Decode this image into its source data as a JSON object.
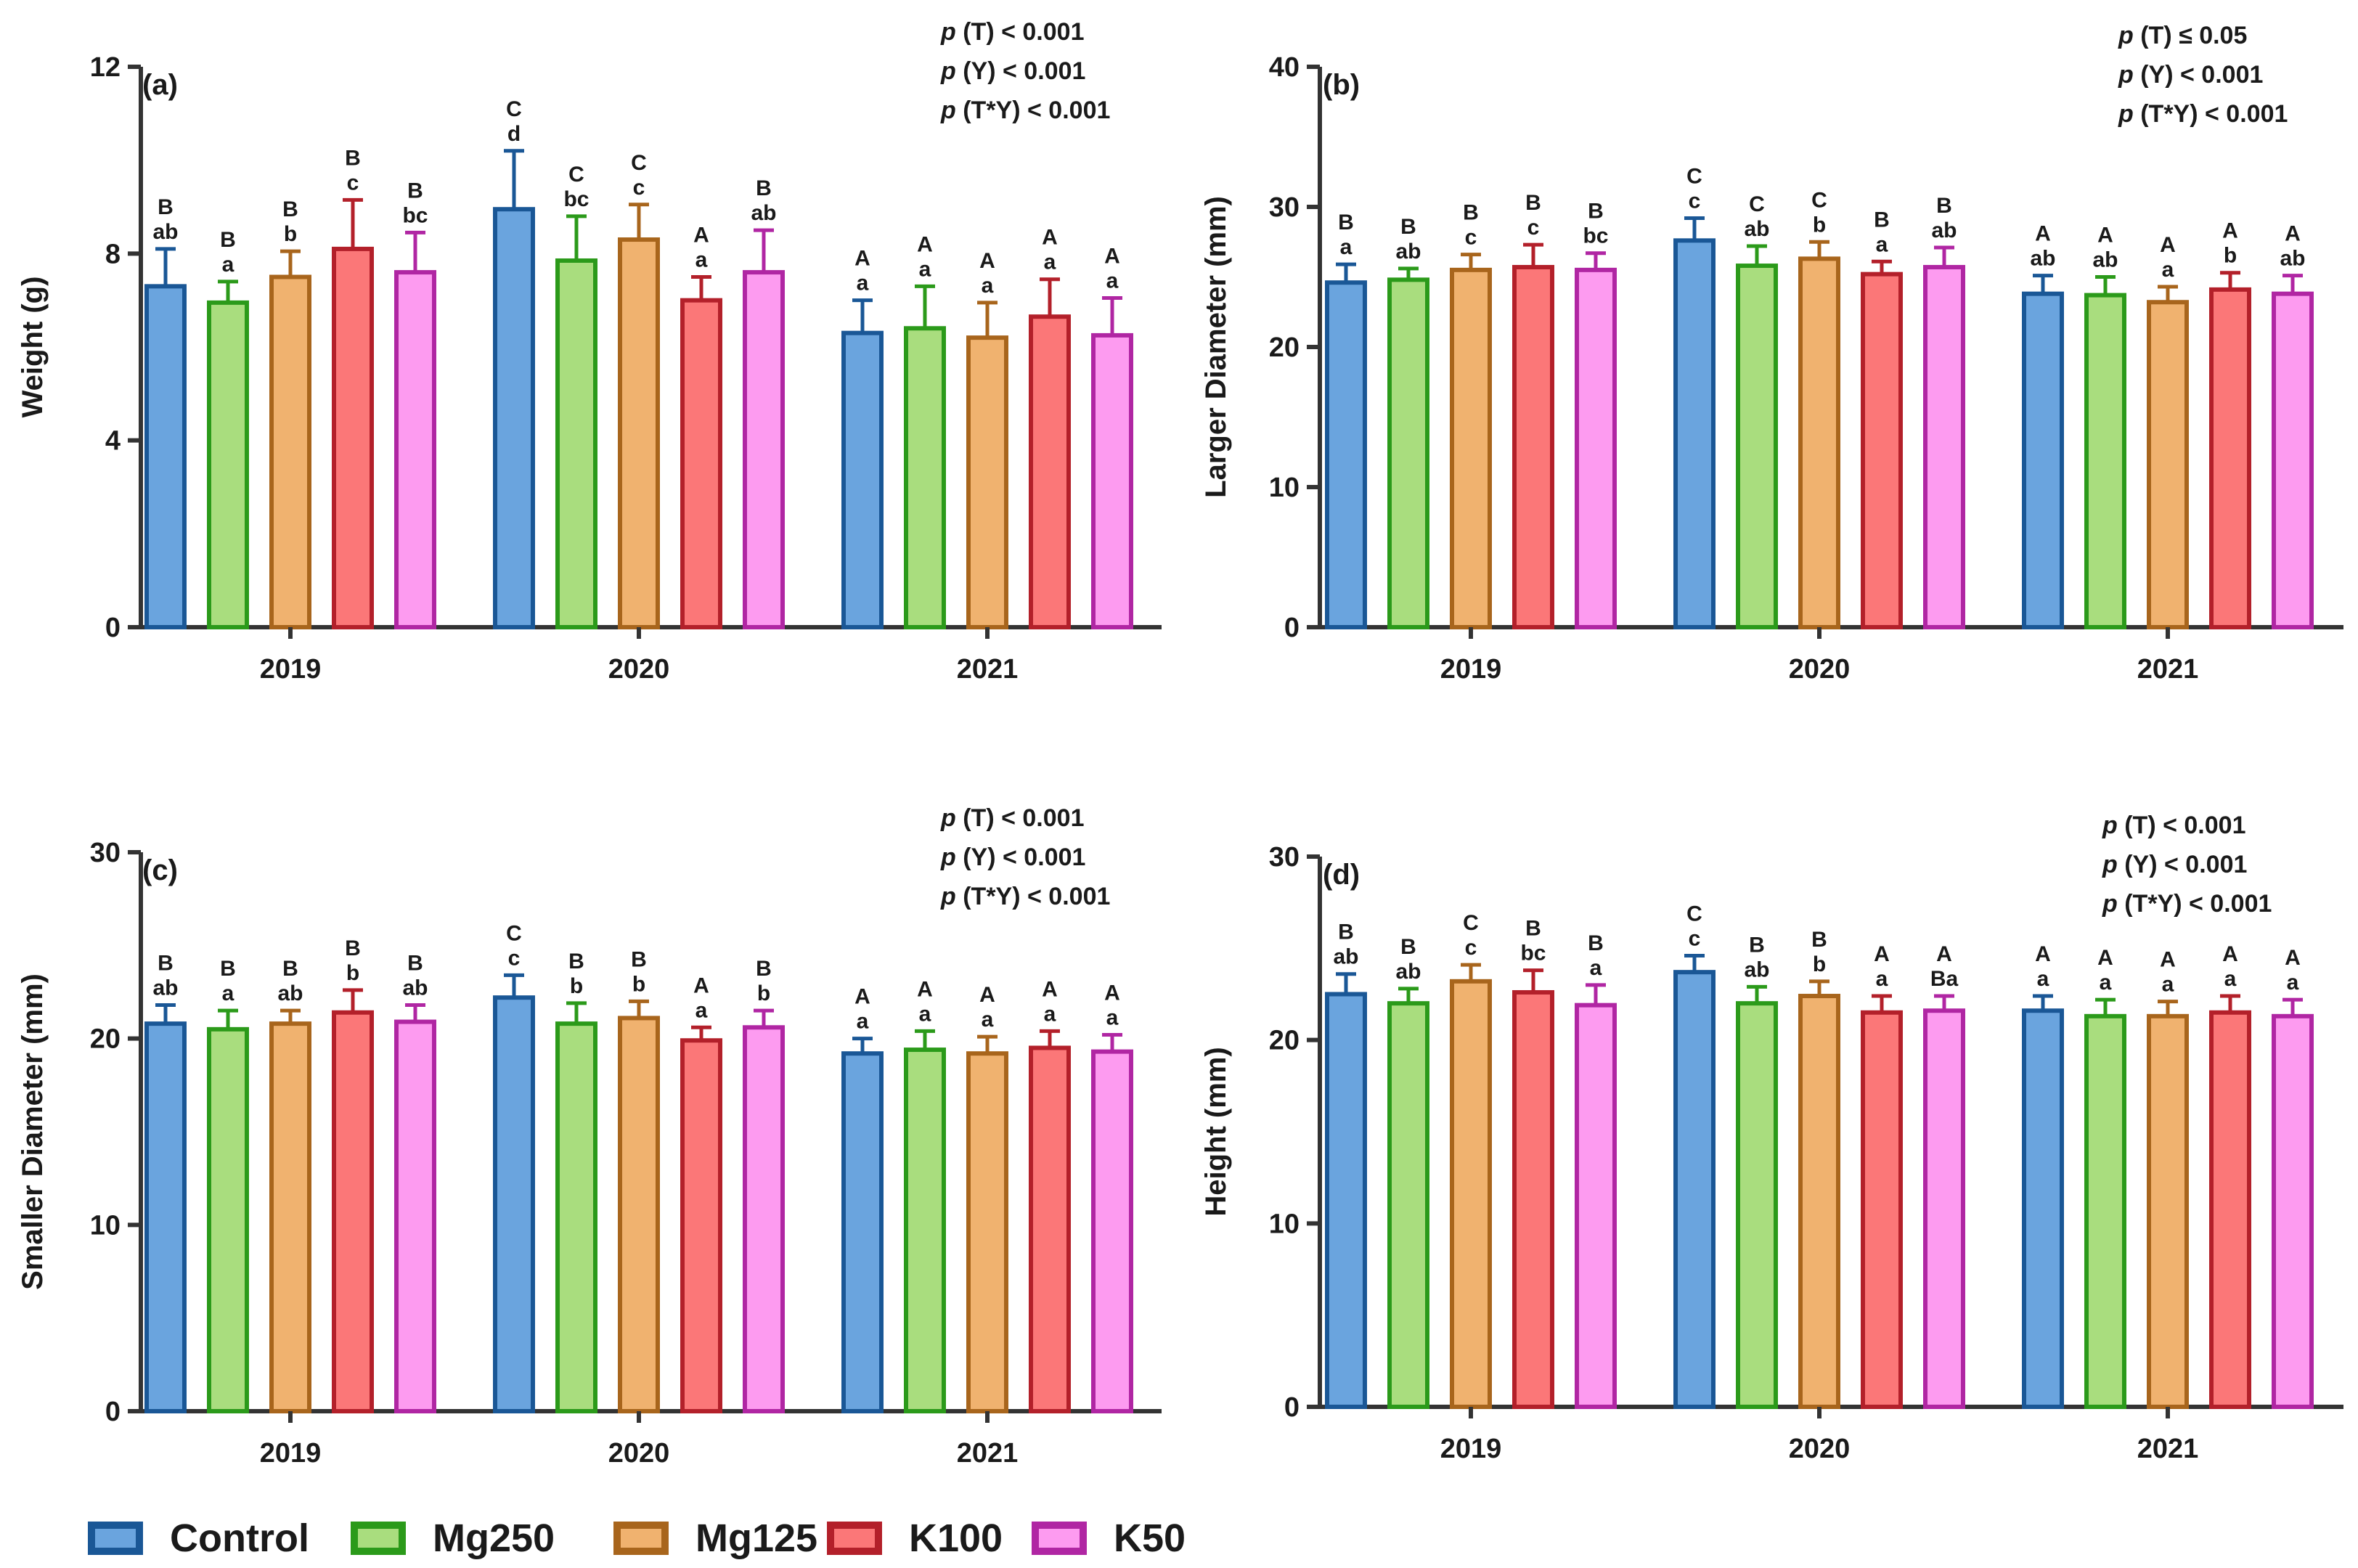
{
  "chart_data": [
    {
      "type": "bar",
      "panel": "(a)",
      "ylabel": "Weight (g)",
      "ylim": [
        0,
        12
      ],
      "yticks": [
        0,
        4,
        8,
        12
      ],
      "categories": [
        "2019",
        "2020",
        "2021"
      ],
      "stats": [
        {
          "italic": "p",
          "text": " (T) < 0.001"
        },
        {
          "italic": "p",
          "text": " (Y) < 0.001"
        },
        {
          "italic": "p",
          "text": " (T*Y) < 0.001"
        }
      ],
      "series": [
        {
          "name": "Control",
          "values": [
            7.3,
            8.95,
            6.3
          ],
          "errors": [
            0.8,
            1.25,
            0.7
          ],
          "upper": [
            "B",
            "C",
            "A"
          ],
          "lower": [
            "ab",
            "d",
            "a"
          ]
        },
        {
          "name": "Mg250",
          "values": [
            6.95,
            7.85,
            6.4
          ],
          "errors": [
            0.45,
            0.95,
            0.9
          ],
          "upper": [
            "B",
            "C",
            "A"
          ],
          "lower": [
            "a",
            "bc",
            "a"
          ]
        },
        {
          "name": "Mg125",
          "values": [
            7.5,
            8.3,
            6.2
          ],
          "errors": [
            0.55,
            0.75,
            0.75
          ],
          "upper": [
            "B",
            "C",
            "A"
          ],
          "lower": [
            "b",
            "c",
            "a"
          ]
        },
        {
          "name": "K100",
          "values": [
            8.1,
            7.0,
            6.65
          ],
          "errors": [
            1.05,
            0.5,
            0.8
          ],
          "upper": [
            "B",
            "A",
            "A"
          ],
          "lower": [
            "c",
            "a",
            "a"
          ]
        },
        {
          "name": "K50",
          "values": [
            7.6,
            7.6,
            6.25
          ],
          "errors": [
            0.85,
            0.9,
            0.8
          ],
          "upper": [
            "B",
            "B",
            "A"
          ],
          "lower": [
            "bc",
            "ab",
            "a"
          ]
        }
      ]
    },
    {
      "type": "bar",
      "panel": "(b)",
      "ylabel": "Larger Diameter (mm)",
      "ylim": [
        0,
        40
      ],
      "yticks": [
        0,
        10,
        20,
        30,
        40
      ],
      "categories": [
        "2019",
        "2020",
        "2021"
      ],
      "stats": [
        {
          "italic": "p",
          "text": " (T) ≤ 0.05"
        },
        {
          "italic": "p",
          "text": " (Y) < 0.001"
        },
        {
          "italic": "p",
          "text": " (T*Y) < 0.001"
        }
      ],
      "series": [
        {
          "name": "Control",
          "values": [
            24.6,
            27.6,
            23.8
          ],
          "errors": [
            1.3,
            1.6,
            1.3
          ],
          "upper": [
            "B",
            "C",
            "A"
          ],
          "lower": [
            "a",
            "c",
            "ab"
          ]
        },
        {
          "name": "Mg250",
          "values": [
            24.8,
            25.8,
            23.7
          ],
          "errors": [
            0.8,
            1.4,
            1.3
          ],
          "upper": [
            "B",
            "C",
            "A"
          ],
          "lower": [
            "ab",
            "ab",
            "ab"
          ]
        },
        {
          "name": "Mg125",
          "values": [
            25.5,
            26.3,
            23.2
          ],
          "errors": [
            1.1,
            1.2,
            1.1
          ],
          "upper": [
            "B",
            "C",
            "A"
          ],
          "lower": [
            "c",
            "b",
            "a"
          ]
        },
        {
          "name": "K100",
          "values": [
            25.7,
            25.2,
            24.1
          ],
          "errors": [
            1.6,
            0.9,
            1.2
          ],
          "upper": [
            "B",
            "B",
            "A"
          ],
          "lower": [
            "c",
            "a",
            "b"
          ]
        },
        {
          "name": "K50",
          "values": [
            25.5,
            25.7,
            23.8
          ],
          "errors": [
            1.2,
            1.4,
            1.3
          ],
          "upper": [
            "B",
            "B",
            "A"
          ],
          "lower": [
            "bc",
            "ab",
            "ab"
          ]
        }
      ]
    },
    {
      "type": "bar",
      "panel": "(c)",
      "ylabel": "Smaller Diameter (mm)",
      "ylim": [
        0,
        30
      ],
      "yticks": [
        0,
        10,
        20,
        30
      ],
      "categories": [
        "2019",
        "2020",
        "2021"
      ],
      "stats": [
        {
          "italic": "p",
          "text": " (T) < 0.001"
        },
        {
          "italic": "p",
          "text": " (Y) < 0.001"
        },
        {
          "italic": "p",
          "text": " (T*Y) < 0.001"
        }
      ],
      "series": [
        {
          "name": "Control",
          "values": [
            20.8,
            22.2,
            19.2
          ],
          "errors": [
            1.0,
            1.2,
            0.8
          ],
          "upper": [
            "B",
            "C",
            "A"
          ],
          "lower": [
            "ab",
            "c",
            "a"
          ]
        },
        {
          "name": "Mg250",
          "values": [
            20.5,
            20.8,
            19.4
          ],
          "errors": [
            1.0,
            1.1,
            1.0
          ],
          "upper": [
            "B",
            "B",
            "A"
          ],
          "lower": [
            "a",
            "b",
            "a"
          ]
        },
        {
          "name": "Mg125",
          "values": [
            20.8,
            21.1,
            19.2
          ],
          "errors": [
            0.7,
            0.9,
            0.9
          ],
          "upper": [
            "B",
            "B",
            "A"
          ],
          "lower": [
            "ab",
            "b",
            "a"
          ]
        },
        {
          "name": "K100",
          "values": [
            21.4,
            19.9,
            19.5
          ],
          "errors": [
            1.2,
            0.7,
            0.9
          ],
          "upper": [
            "B",
            "A",
            "A"
          ],
          "lower": [
            "b",
            "a",
            "a"
          ]
        },
        {
          "name": "K50",
          "values": [
            20.9,
            20.6,
            19.3
          ],
          "errors": [
            0.9,
            0.9,
            0.9
          ],
          "upper": [
            "B",
            "B",
            "A"
          ],
          "lower": [
            "ab",
            "b",
            "a"
          ]
        }
      ]
    },
    {
      "type": "bar",
      "panel": "(d)",
      "ylabel": "Height (mm)",
      "ylim": [
        0,
        30
      ],
      "yticks": [
        0,
        10,
        20,
        30
      ],
      "categories": [
        "2019",
        "2020",
        "2021"
      ],
      "stats": [
        {
          "italic": "p",
          "text": " (T) < 0.001"
        },
        {
          "italic": "p",
          "text": " (Y) < 0.001"
        },
        {
          "italic": "p",
          "text": " (T*Y) < 0.001"
        }
      ],
      "series": [
        {
          "name": "Control",
          "values": [
            22.5,
            23.7,
            21.6
          ],
          "errors": [
            1.1,
            0.9,
            0.8
          ],
          "upper": [
            "B",
            "C",
            "A"
          ],
          "lower": [
            "ab",
            "c",
            "a"
          ]
        },
        {
          "name": "Mg250",
          "values": [
            22.0,
            22.0,
            21.3
          ],
          "errors": [
            0.8,
            0.9,
            0.9
          ],
          "upper": [
            "B",
            "B",
            "A"
          ],
          "lower": [
            "ab",
            "ab",
            "a"
          ]
        },
        {
          "name": "Mg125",
          "values": [
            23.2,
            22.4,
            21.3
          ],
          "errors": [
            0.9,
            0.8,
            0.8
          ],
          "upper": [
            "C",
            "B",
            "A"
          ],
          "lower": [
            "c",
            "b",
            "a"
          ]
        },
        {
          "name": "K100",
          "values": [
            22.6,
            21.5,
            21.5
          ],
          "errors": [
            1.2,
            0.9,
            0.9
          ],
          "upper": [
            "B",
            "A",
            "A"
          ],
          "lower": [
            "bc",
            "a",
            "a"
          ]
        },
        {
          "name": "K50",
          "values": [
            21.9,
            21.6,
            21.3
          ],
          "errors": [
            1.1,
            0.8,
            0.9
          ],
          "upper": [
            "B",
            "A",
            "A"
          ],
          "lower": [
            "a",
            "Ba",
            "a"
          ]
        }
      ]
    }
  ],
  "legend": [
    {
      "name": "Control",
      "fill": "#6aa4de",
      "stroke": "#1a5796"
    },
    {
      "name": "Mg250",
      "fill": "#a9dd7e",
      "stroke": "#2b9a1a"
    },
    {
      "name": "Mg125",
      "fill": "#f0b26f",
      "stroke": "#a8651c"
    },
    {
      "name": "K100",
      "fill": "#fb7778",
      "stroke": "#b3202a"
    },
    {
      "name": "K50",
      "fill": "#fd9bf0",
      "stroke": "#b026a3"
    }
  ]
}
